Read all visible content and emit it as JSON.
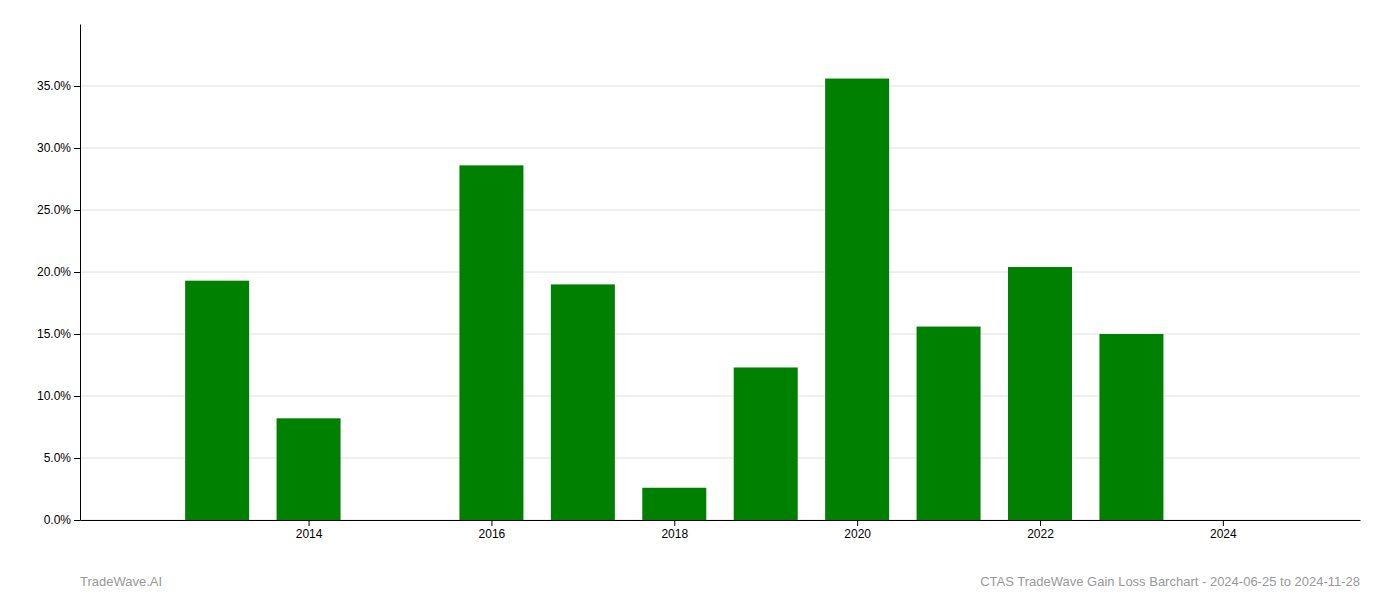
{
  "chart_data": {
    "type": "bar",
    "x": [
      2013,
      2014,
      2016,
      2017,
      2018,
      2019,
      2020,
      2021,
      2022,
      2023
    ],
    "values": [
      0.193,
      0.082,
      0.286,
      0.19,
      0.026,
      0.123,
      0.356,
      0.156,
      0.204,
      0.15
    ],
    "color": "#008000",
    "xlim": [
      2011.5,
      2025.5
    ],
    "xticks": [
      2014,
      2016,
      2018,
      2020,
      2022,
      2024
    ],
    "ylim": [
      0,
      0.4
    ],
    "yticks": [
      {
        "value": 0.0,
        "label": "0.0%"
      },
      {
        "value": 0.05,
        "label": "5.0%"
      },
      {
        "value": 0.1,
        "label": "10.0%"
      },
      {
        "value": 0.15,
        "label": "15.0%"
      },
      {
        "value": 0.2,
        "label": "20.0%"
      },
      {
        "value": 0.25,
        "label": "25.0%"
      },
      {
        "value": 0.3,
        "label": "30.0%"
      },
      {
        "value": 0.35,
        "label": "35.0%"
      }
    ],
    "grid": true,
    "annotations": [
      "TradeWave.AI",
      "CTAS TradeWave Gain Loss Barchart - 2024-06-25 to 2024-11-28"
    ]
  }
}
